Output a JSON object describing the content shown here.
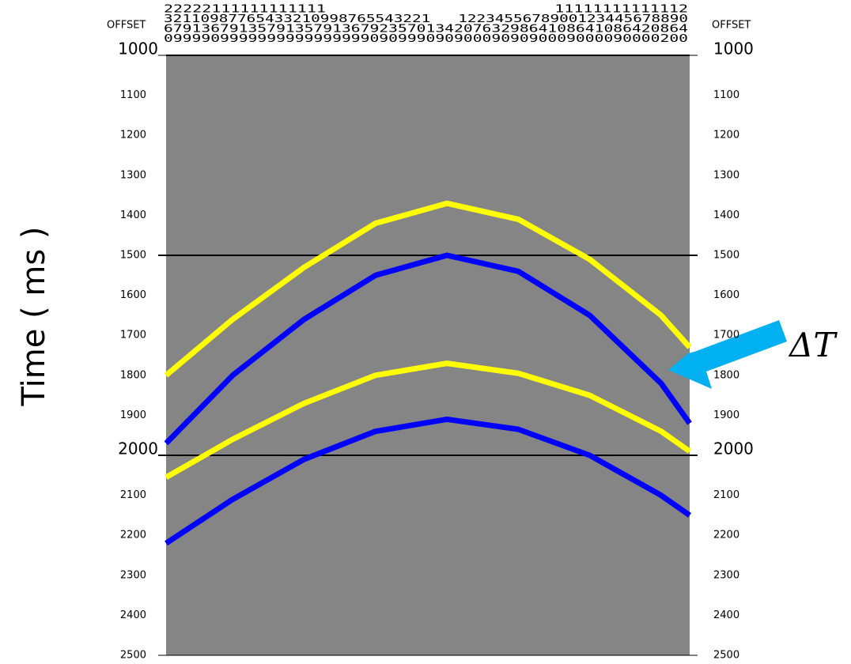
{
  "chart_data": {
    "type": "line",
    "y_label": "Time ( ms )",
    "offset_label": "OFFSET",
    "offset_header": [
      "22222111111111111                        11111111111112",
      "32110987765433210998765543221   1223455678900123445678890",
      "67913679135791357913679235701342076329864108641086420864",
      "09999099999999999999990909990909000909090009000090000200"
    ],
    "annotation": "ΔT",
    "x": [
      -2360,
      -1800,
      -1200,
      -600,
      0,
      600,
      1200,
      1800,
      2040
    ],
    "xlim": [
      -2360,
      2040
    ],
    "ylim": [
      1000,
      2500
    ],
    "y_inverted": true,
    "yticks": [
      1000,
      1100,
      1200,
      1300,
      1400,
      1500,
      1600,
      1700,
      1800,
      1900,
      2000,
      2100,
      2200,
      2300,
      2400,
      2500
    ],
    "emphasized_yticks": [
      1000,
      2000
    ],
    "hlines": [
      1500,
      2000
    ],
    "series": [
      {
        "color": "#ffff00",
        "values": [
          1800,
          1660,
          1530,
          1420,
          1370,
          1410,
          1510,
          1650,
          1730
        ]
      },
      {
        "color": "#0000ff",
        "values": [
          1970,
          1800,
          1660,
          1550,
          1500,
          1540,
          1650,
          1820,
          1920
        ]
      },
      {
        "color": "#ffff00",
        "values": [
          2055,
          1960,
          1870,
          1800,
          1770,
          1795,
          1850,
          1940,
          1990
        ]
      },
      {
        "color": "#0000ff",
        "values": [
          2220,
          2110,
          2010,
          1940,
          1910,
          1935,
          2000,
          2100,
          2150
        ]
      }
    ]
  }
}
